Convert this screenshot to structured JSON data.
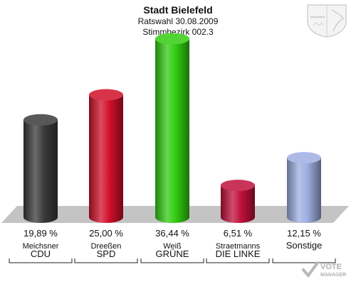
{
  "header": {
    "title": "Stadt Bielefeld",
    "subtitle": "Ratswahl 30.08.2009",
    "district": "Stimmbezirk 002.3"
  },
  "crest": {
    "icon": "coat-of-arms-icon"
  },
  "watermark": {
    "line1": "VOTE",
    "line2": "MANAGER",
    "icon": "checkmark-icon"
  },
  "chart_data": {
    "type": "bar",
    "style": "3d-cylinders",
    "categories": [
      "CDU",
      "SPD",
      "GRÜNE",
      "DIE LINKE",
      "Sonstige"
    ],
    "candidates": [
      "Meichsner",
      "Dreeßen",
      "Weiß",
      "Straetmanns",
      ""
    ],
    "values": [
      19.89,
      25.0,
      36.44,
      6.51,
      12.15
    ],
    "labels": [
      "19,89 %",
      "25,00 %",
      "36,44 %",
      "6,51 %",
      "12,15 %"
    ],
    "colors": [
      "#3a3a3a",
      "#d0102a",
      "#33cc11",
      "#c0103a",
      "#9daee0"
    ],
    "ylim": [
      0,
      40
    ]
  }
}
